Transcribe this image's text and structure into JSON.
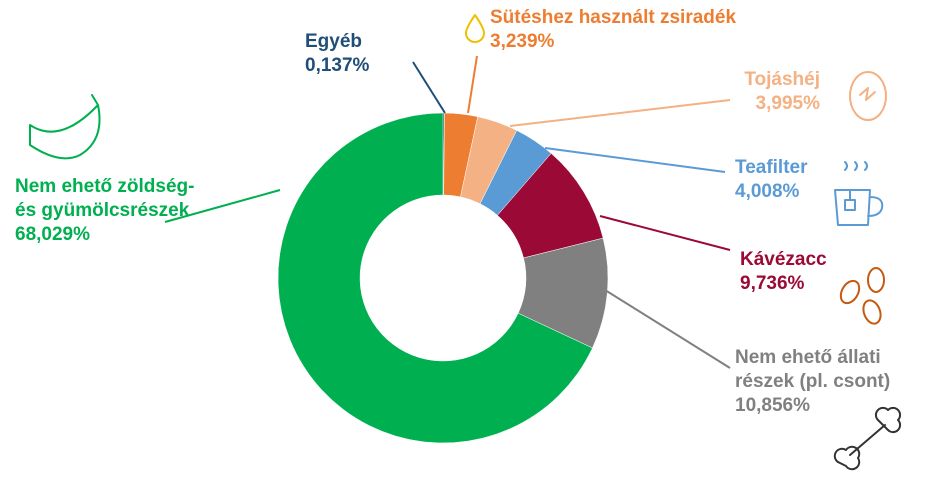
{
  "chart_data": {
    "type": "donut",
    "categories": [
      "Egyéb",
      "Sütéshez használt zsiradék",
      "Tojáshéj",
      "Teafilter",
      "Kávézacc",
      "Nem ehető állati részek (pl. csont)",
      "Nem ehető zöldség- és gyümölcsrészek"
    ],
    "values": [
      0.137,
      3.239,
      3.995,
      4.008,
      9.736,
      10.856,
      68.029
    ],
    "value_labels": [
      "0,137%",
      "3,239%",
      "3,995%",
      "4,008%",
      "9,736%",
      "10,856%",
      "68,029%"
    ],
    "colors": [
      "#1f4e79",
      "#ed7d31",
      "#f4b183",
      "#5b9bd5",
      "#9b0a36",
      "#808080",
      "#00b050"
    ]
  }
}
